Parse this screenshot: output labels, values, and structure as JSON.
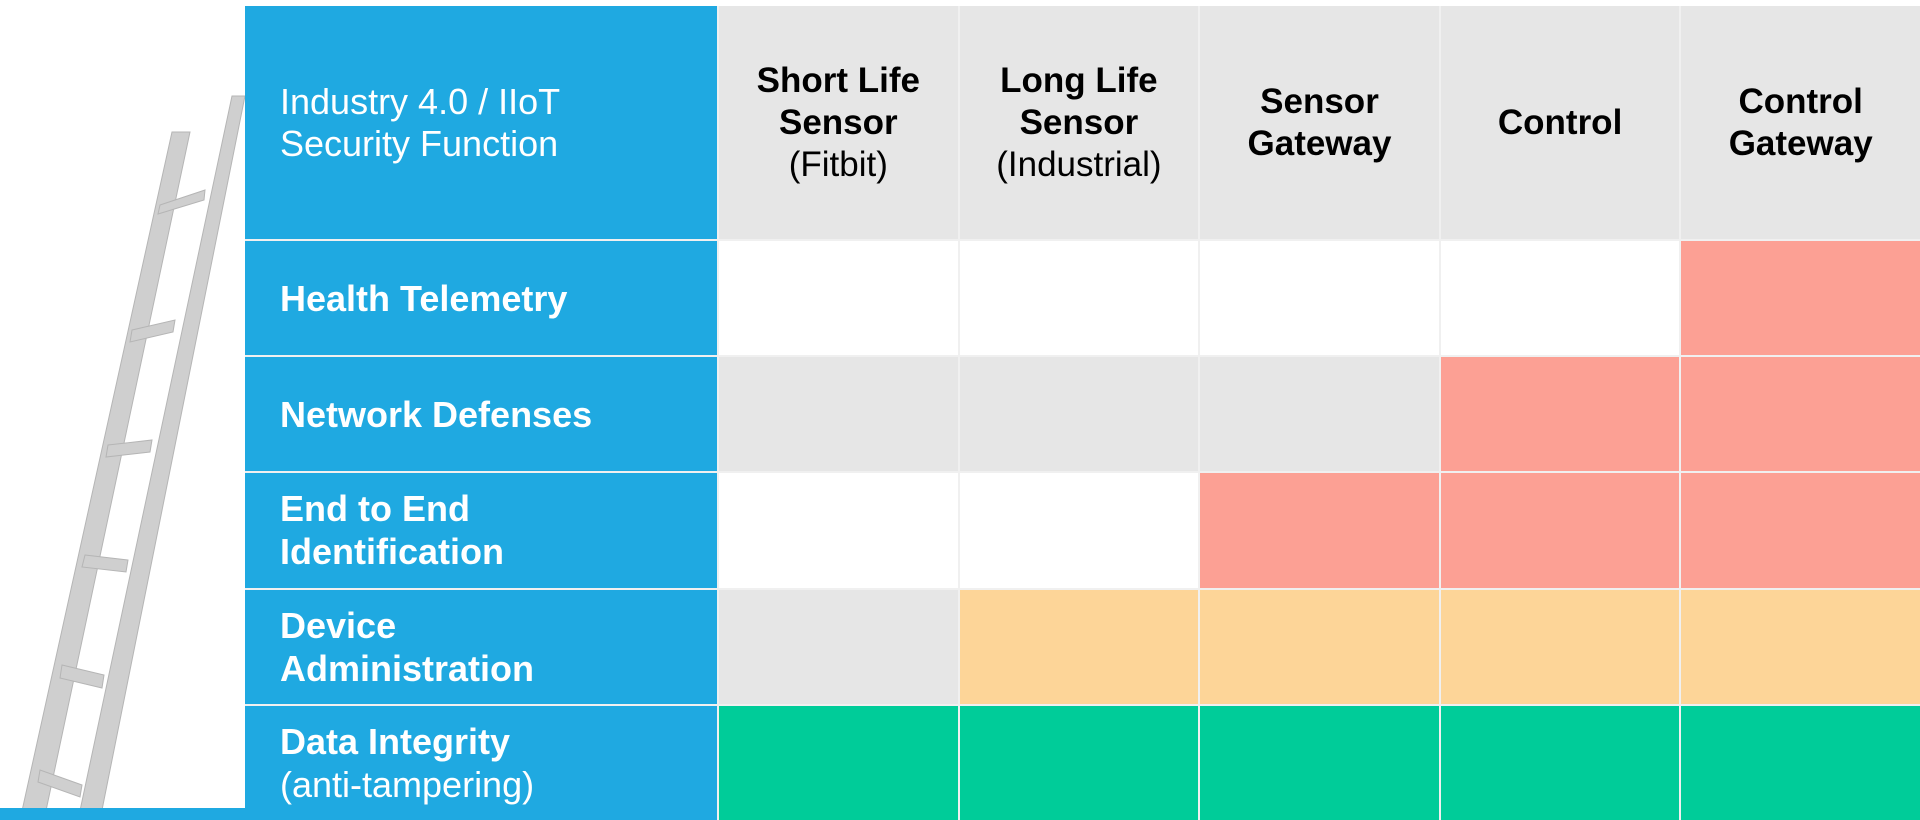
{
  "header": {
    "title": "Industry 4.0 / IIoT Security Function",
    "columns": [
      {
        "name": "Short Life Sensor",
        "sub": "(Fitbit)"
      },
      {
        "name": "Long Life Sensor",
        "sub": "(Industrial)"
      },
      {
        "name": "Sensor Gateway"
      },
      {
        "name": "Control"
      },
      {
        "name": "Control Gateway"
      }
    ]
  },
  "rows": [
    {
      "label": "Health Telemetry",
      "cells": [
        "#ffffff",
        "#ffffff",
        "#ffffff",
        "#ffffff",
        "#fca094"
      ]
    },
    {
      "label": "Network Defenses",
      "cells": [
        "#e6e6e6",
        "#e6e6e6",
        "#e6e6e6",
        "#fca094",
        "#fca094"
      ]
    },
    {
      "label": "End to End Identification",
      "cells": [
        "#ffffff",
        "#ffffff",
        "#fca094",
        "#fca094",
        "#fca094"
      ]
    },
    {
      "label": "Device Administration",
      "cells": [
        "#e6e6e6",
        "#fdd598",
        "#fdd598",
        "#fdd598",
        "#fdd598"
      ]
    },
    {
      "label": "Data Integrity",
      "sub": "(anti-tampering)",
      "cells": [
        "#00cc99",
        "#00cc99",
        "#00cc99",
        "#00cc99",
        "#00cc99"
      ]
    }
  ]
}
